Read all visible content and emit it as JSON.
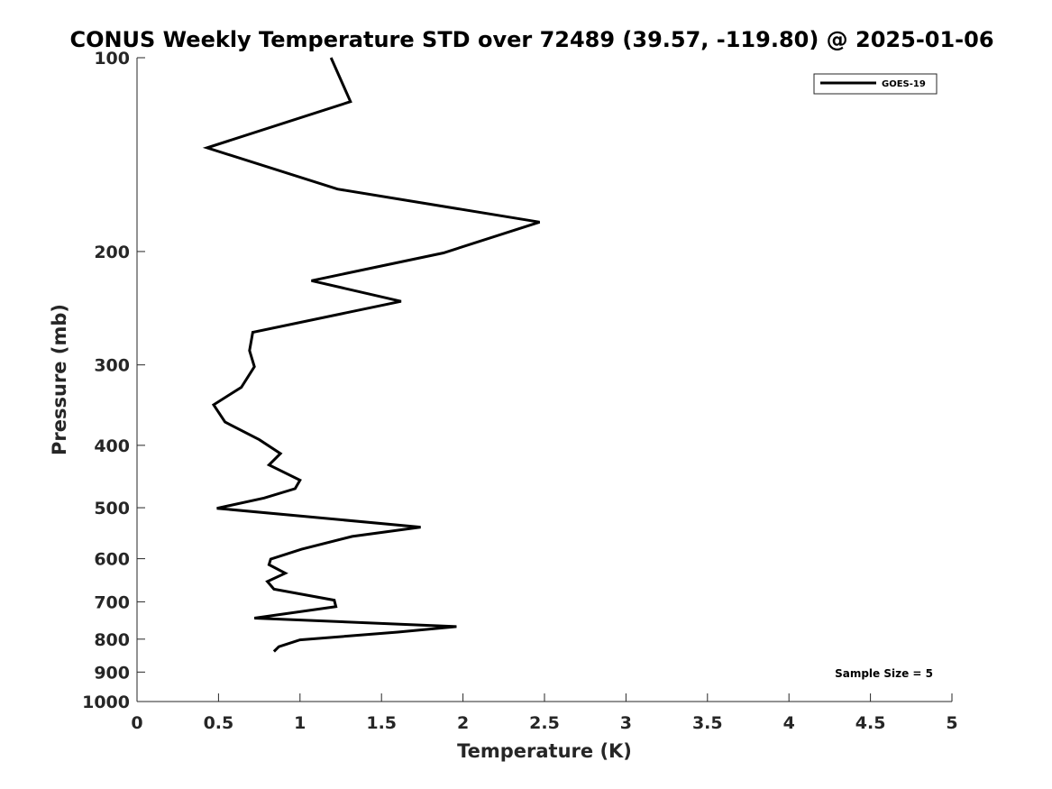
{
  "chart_data": {
    "type": "line",
    "title": "CONUS Weekly Temperature STD over 72489 (39.57, -119.80) @ 2025-01-06",
    "xlabel": "Temperature (K)",
    "ylabel": "Pressure (mb)",
    "xlim": [
      0,
      5
    ],
    "ylim": [
      100,
      1000
    ],
    "yscale": "log",
    "y_reversed": true,
    "grid": false,
    "x_ticks": [
      0,
      0.5,
      1,
      1.5,
      2,
      2.5,
      3,
      3.5,
      4,
      4.5,
      5
    ],
    "x_tick_labels": [
      "0",
      "0.5",
      "1",
      "1.5",
      "2",
      "2.5",
      "3",
      "3.5",
      "4",
      "4.5",
      "5"
    ],
    "y_ticks": [
      100,
      200,
      300,
      400,
      500,
      600,
      700,
      800,
      900,
      1000
    ],
    "y_tick_labels": [
      "100",
      "200",
      "300",
      "400",
      "500",
      "600",
      "700",
      "800",
      "900",
      "1000"
    ],
    "legend": {
      "position": "top-right",
      "entries": [
        "GOES-19"
      ]
    },
    "annotation": "Sample Size = 5",
    "series": [
      {
        "name": "GOES-19",
        "color": "#000000",
        "points": [
          {
            "x": 1.19,
            "y": 100
          },
          {
            "x": 1.31,
            "y": 117
          },
          {
            "x": 0.43,
            "y": 138
          },
          {
            "x": 1.23,
            "y": 160
          },
          {
            "x": 2.47,
            "y": 180
          },
          {
            "x": 1.88,
            "y": 201
          },
          {
            "x": 1.07,
            "y": 222
          },
          {
            "x": 1.62,
            "y": 239
          },
          {
            "x": 0.71,
            "y": 267
          },
          {
            "x": 0.69,
            "y": 285
          },
          {
            "x": 0.72,
            "y": 302
          },
          {
            "x": 0.64,
            "y": 325
          },
          {
            "x": 0.47,
            "y": 346
          },
          {
            "x": 0.54,
            "y": 368
          },
          {
            "x": 0.75,
            "y": 392
          },
          {
            "x": 0.88,
            "y": 412
          },
          {
            "x": 0.81,
            "y": 429
          },
          {
            "x": 1.0,
            "y": 453
          },
          {
            "x": 0.97,
            "y": 467
          },
          {
            "x": 0.78,
            "y": 483
          },
          {
            "x": 0.49,
            "y": 501
          },
          {
            "x": 1.74,
            "y": 536
          },
          {
            "x": 1.32,
            "y": 554
          },
          {
            "x": 1.01,
            "y": 580
          },
          {
            "x": 0.82,
            "y": 601
          },
          {
            "x": 0.81,
            "y": 613
          },
          {
            "x": 0.91,
            "y": 632
          },
          {
            "x": 0.8,
            "y": 651
          },
          {
            "x": 0.84,
            "y": 669
          },
          {
            "x": 1.21,
            "y": 696
          },
          {
            "x": 1.22,
            "y": 712
          },
          {
            "x": 0.72,
            "y": 742
          },
          {
            "x": 1.96,
            "y": 765
          },
          {
            "x": 1.6,
            "y": 780
          },
          {
            "x": 1.0,
            "y": 802
          },
          {
            "x": 0.87,
            "y": 822
          },
          {
            "x": 0.84,
            "y": 836
          }
        ]
      }
    ]
  }
}
